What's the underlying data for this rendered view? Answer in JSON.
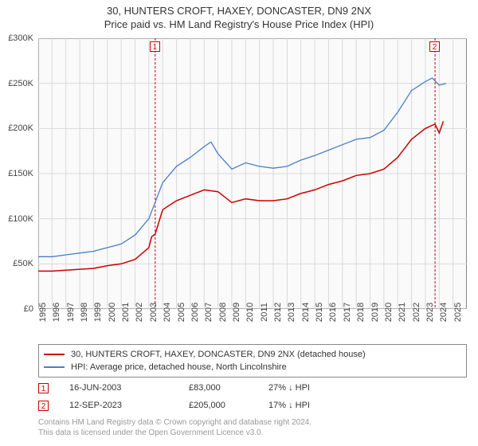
{
  "title_line1": "30, HUNTERS CROFT, HAXEY, DONCASTER, DN9 2NX",
  "title_line2": "Price paid vs. HM Land Registry's House Price Index (HPI)",
  "chart": {
    "type": "line",
    "background_color": "#fafafa",
    "border_color": "#888888",
    "xlim": [
      1995,
      2026
    ],
    "ylim": [
      0,
      300000
    ],
    "x_ticks": [
      1995,
      1996,
      1997,
      1998,
      1999,
      2000,
      2001,
      2002,
      2003,
      2004,
      2005,
      2006,
      2007,
      2008,
      2009,
      2010,
      2011,
      2012,
      2013,
      2014,
      2015,
      2016,
      2017,
      2018,
      2019,
      2020,
      2021,
      2022,
      2023,
      2024,
      2025
    ],
    "y_ticks": [
      0,
      50000,
      100000,
      150000,
      200000,
      250000,
      300000
    ],
    "y_tick_labels": [
      "£0",
      "£50K",
      "£100K",
      "£150K",
      "£200K",
      "£250K",
      "£300K"
    ],
    "grid_color": "#d9d9d9",
    "label_fontsize": 11,
    "series": [
      {
        "name": "property",
        "label": "30, HUNTERS CROFT, HAXEY, DONCASTER, DN9 2NX (detached house)",
        "color": "#cc0000",
        "line_width": 1.5,
        "data": [
          [
            1995,
            42000
          ],
          [
            1996,
            42000
          ],
          [
            1997,
            43000
          ],
          [
            1998,
            44000
          ],
          [
            1999,
            45000
          ],
          [
            2000,
            48000
          ],
          [
            2001,
            50000
          ],
          [
            2002,
            55000
          ],
          [
            2003,
            68000
          ],
          [
            2003.2,
            80000
          ],
          [
            2003.46,
            83000
          ],
          [
            2004,
            110000
          ],
          [
            2005,
            120000
          ],
          [
            2006,
            126000
          ],
          [
            2007,
            132000
          ],
          [
            2008,
            130000
          ],
          [
            2009,
            118000
          ],
          [
            2010,
            122000
          ],
          [
            2011,
            120000
          ],
          [
            2012,
            120000
          ],
          [
            2013,
            122000
          ],
          [
            2014,
            128000
          ],
          [
            2015,
            132000
          ],
          [
            2016,
            138000
          ],
          [
            2017,
            142000
          ],
          [
            2018,
            148000
          ],
          [
            2019,
            150000
          ],
          [
            2020,
            155000
          ],
          [
            2021,
            168000
          ],
          [
            2022,
            188000
          ],
          [
            2023,
            200000
          ],
          [
            2023.7,
            205000
          ],
          [
            2024,
            195000
          ],
          [
            2024.3,
            208000
          ]
        ]
      },
      {
        "name": "hpi",
        "label": "HPI: Average price, detached house, North Lincolnshire",
        "color": "#4a7ec8",
        "line_width": 1.3,
        "data": [
          [
            1995,
            58000
          ],
          [
            1996,
            58000
          ],
          [
            1997,
            60000
          ],
          [
            1998,
            62000
          ],
          [
            1999,
            64000
          ],
          [
            2000,
            68000
          ],
          [
            2001,
            72000
          ],
          [
            2002,
            82000
          ],
          [
            2003,
            100000
          ],
          [
            2004,
            140000
          ],
          [
            2005,
            158000
          ],
          [
            2006,
            168000
          ],
          [
            2007,
            180000
          ],
          [
            2007.5,
            185000
          ],
          [
            2008,
            172000
          ],
          [
            2009,
            155000
          ],
          [
            2010,
            162000
          ],
          [
            2011,
            158000
          ],
          [
            2012,
            156000
          ],
          [
            2013,
            158000
          ],
          [
            2014,
            165000
          ],
          [
            2015,
            170000
          ],
          [
            2016,
            176000
          ],
          [
            2017,
            182000
          ],
          [
            2018,
            188000
          ],
          [
            2019,
            190000
          ],
          [
            2020,
            198000
          ],
          [
            2021,
            218000
          ],
          [
            2022,
            242000
          ],
          [
            2023,
            252000
          ],
          [
            2023.5,
            256000
          ],
          [
            2024,
            248000
          ],
          [
            2024.5,
            250000
          ]
        ]
      }
    ],
    "markers": [
      {
        "id": "1",
        "x": 2003.46,
        "color": "#cc0000"
      },
      {
        "id": "2",
        "x": 2023.7,
        "color": "#cc0000"
      }
    ]
  },
  "legend": {
    "items": [
      {
        "color": "#cc0000",
        "label": "30, HUNTERS CROFT, HAXEY, DONCASTER, DN9 2NX (detached house)"
      },
      {
        "color": "#4a7ec8",
        "label": "HPI: Average price, detached house, North Lincolnshire"
      }
    ]
  },
  "sale_rows": [
    {
      "marker": "1",
      "color": "#cc0000",
      "date": "16-JUN-2003",
      "price": "£83,000",
      "pct": "27% ↓ HPI"
    },
    {
      "marker": "2",
      "color": "#cc0000",
      "date": "12-SEP-2023",
      "price": "£205,000",
      "pct": "17% ↓ HPI"
    }
  ],
  "footer_line1": "Contains HM Land Registry data © Crown copyright and database right 2024.",
  "footer_line2": "This data is licensed under the Open Government Licence v3.0."
}
